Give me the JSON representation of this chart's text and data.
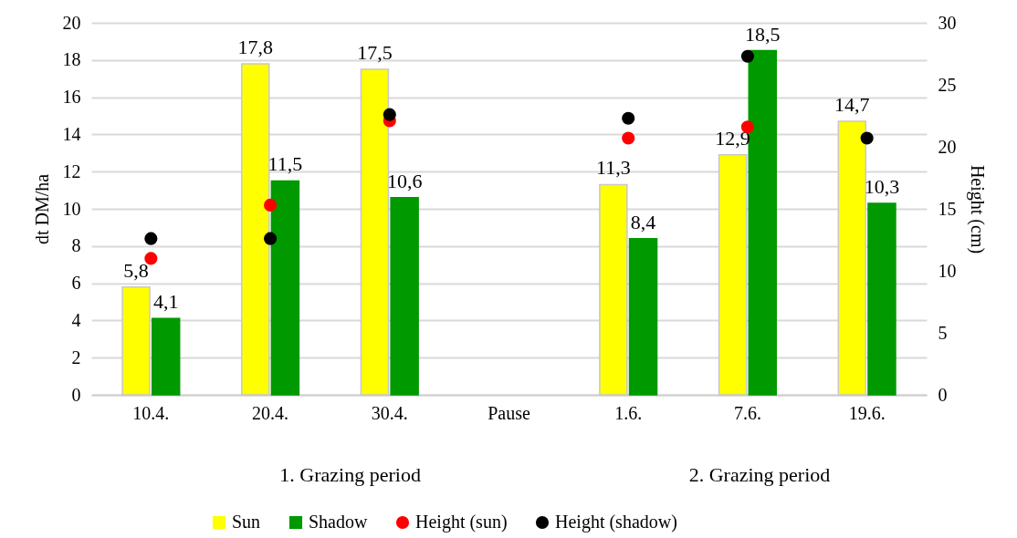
{
  "chart_data": {
    "type": "bar",
    "categories": [
      "10.4.",
      "20.4.",
      "30.4.",
      "Pause",
      "1.6.",
      "7.6.",
      "19.6."
    ],
    "ylabel": "dt DM/ha",
    "y2label": "Height (cm)",
    "ylim": [
      0,
      20
    ],
    "yticks": [
      0,
      2,
      4,
      6,
      8,
      10,
      12,
      14,
      16,
      18,
      20
    ],
    "y2lim": [
      0,
      30
    ],
    "y2ticks": [
      0,
      5,
      10,
      15,
      20,
      25,
      30
    ],
    "series": [
      {
        "name": "Sun",
        "color": "#ffff00",
        "values": [
          5.8,
          17.8,
          17.5,
          null,
          11.3,
          12.9,
          14.7
        ],
        "value_labels": [
          "5,8",
          "17,8",
          "17,5",
          null,
          "11,3",
          "12,9",
          "14,7"
        ]
      },
      {
        "name": "Shadow",
        "color": "#009900",
        "values": [
          4.1,
          11.5,
          10.6,
          null,
          8.4,
          18.5,
          10.3
        ],
        "value_labels": [
          "4,1",
          "11,5",
          "10,6",
          null,
          "8,4",
          "18,5",
          "10,3"
        ]
      },
      {
        "name": "Height (sun)",
        "type": "scatter",
        "axis": "y2",
        "color": "#ff0000",
        "values": [
          11.0,
          15.3,
          22.1,
          null,
          20.7,
          21.6,
          null
        ]
      },
      {
        "name": "Height (shadow)",
        "type": "scatter",
        "axis": "y2",
        "color": "#000000",
        "values": [
          12.6,
          12.6,
          22.6,
          null,
          22.3,
          27.3,
          20.7
        ]
      }
    ],
    "grid": "y",
    "legend": "bottom",
    "marker": "circle",
    "annotations": [
      "1. Grazing period",
      "2. Grazing period"
    ]
  }
}
